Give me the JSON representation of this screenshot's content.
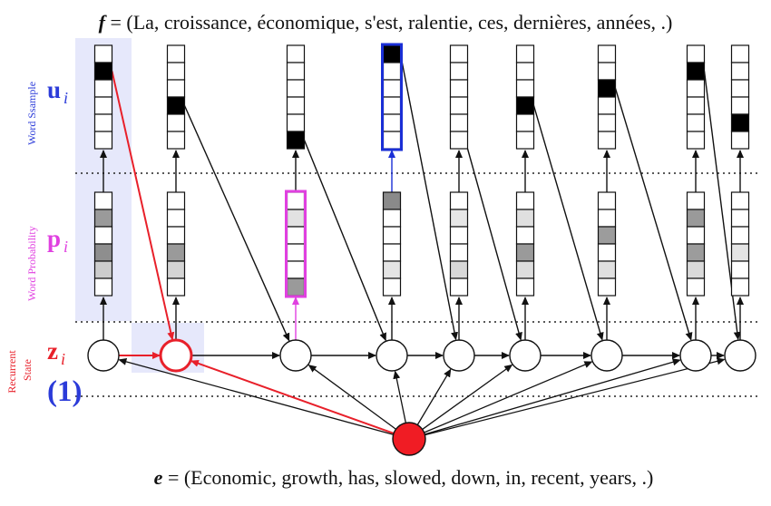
{
  "top_equation": {
    "symbol": "f",
    "text": " = (La, croissance, économique, s'est, ralentie, ces, dernières, années, .)"
  },
  "bottom_equation": {
    "symbol": "e",
    "text": " = (Economic, growth, has, slowed, down, in, recent, years, .)"
  },
  "rows": {
    "u": {
      "symbol": "u",
      "subscript": "i",
      "side_label": "Word Ssample",
      "color": "#2b3bd9"
    },
    "p": {
      "symbol": "p",
      "subscript": "i",
      "side_label": "Word Probability",
      "color": "#e040e0"
    },
    "z": {
      "symbol": "z",
      "subscript": "i",
      "side_label_1": "Recurrent",
      "side_label_2": "State",
      "color": "#e8202a"
    }
  },
  "step_marker": "(1)",
  "colors": {
    "highlight_fill": "#e6e8fb",
    "sample_highlight": "#1a2fd6",
    "prob_highlight": "#e040e0",
    "red": "#e8202a",
    "node_red": "#f01c24"
  },
  "columns": [
    {
      "u_filled": 1,
      "p_shades": [
        "#ffffff",
        "#9a9a9a",
        "#ffffff",
        "#8e8e8e",
        "#cccccc",
        "#ffffff"
      ]
    },
    {
      "u_filled": 3,
      "p_shades": [
        "#ffffff",
        "#ffffff",
        "#ffffff",
        "#9a9a9a",
        "#d4d4d4",
        "#ffffff"
      ]
    },
    {
      "u_filled": 5,
      "p_shades": [
        "#ffffff",
        "#e2e2e2",
        "#ffffff",
        "#ffffff",
        "#ffffff",
        "#9a9a9a"
      ]
    },
    {
      "u_filled": 0,
      "p_shades": [
        "#8a8a8a",
        "#ffffff",
        "#ffffff",
        "#ffffff",
        "#e4e4e4",
        "#ffffff"
      ]
    },
    {
      "u_filled": -1,
      "p_shades": [
        "#ffffff",
        "#e6e6e6",
        "#ffffff",
        "#ffffff",
        "#d8d8d8",
        "#ffffff"
      ]
    },
    {
      "u_filled": 3,
      "p_shades": [
        "#ffffff",
        "#e0e0e0",
        "#ffffff",
        "#9a9a9a",
        "#dddddd",
        "#ffffff"
      ]
    },
    {
      "u_filled": 2,
      "p_shades": [
        "#ffffff",
        "#ffffff",
        "#9c9c9c",
        "#ffffff",
        "#e0e0e0",
        "#ffffff"
      ]
    },
    {
      "u_filled": 1,
      "p_shades": [
        "#ffffff",
        "#9a9a9a",
        "#ffffff",
        "#9c9c9c",
        "#dadada",
        "#ffffff"
      ]
    },
    {
      "u_filled": 4,
      "p_shades": [
        "#ffffff",
        "#ffffff",
        "#ffffff",
        "#e4e4e4",
        "#ffffff",
        "#ffffff"
      ]
    }
  ]
}
